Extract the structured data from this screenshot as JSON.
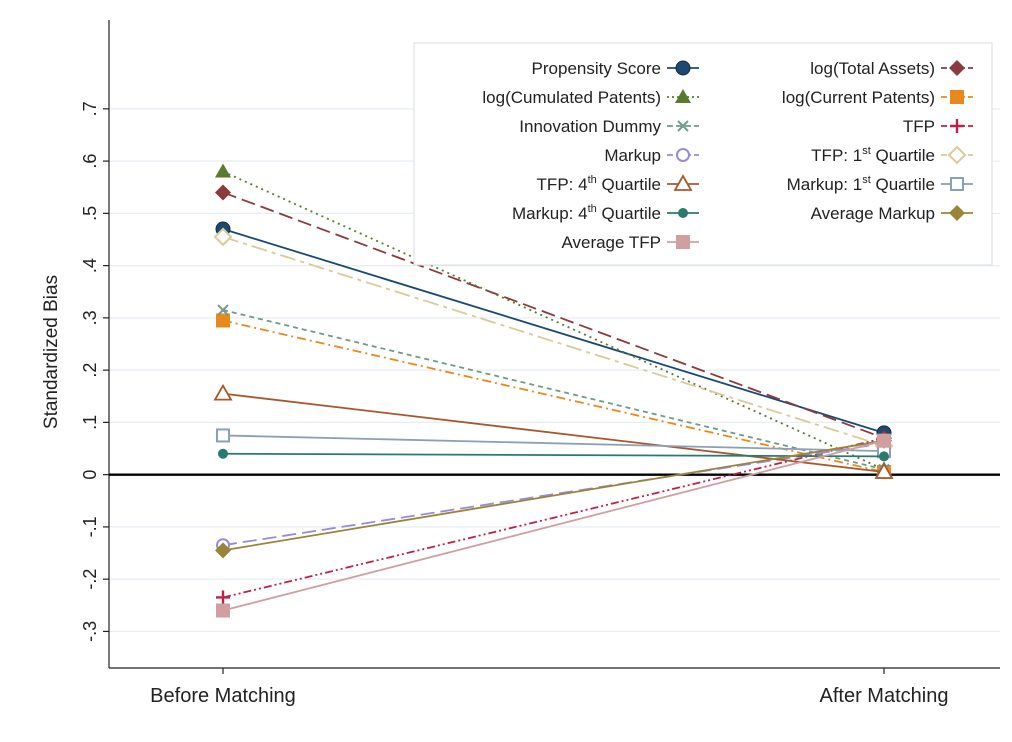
{
  "chart_data": {
    "type": "line",
    "categories": [
      "Before Matching",
      "After Matching"
    ],
    "ylabel": "Standardized Bias",
    "ylim": [
      -0.37,
      0.87
    ],
    "yticks": [
      {
        "value": -0.3,
        "label": "-.3"
      },
      {
        "value": -0.2,
        "label": "-.2"
      },
      {
        "value": -0.1,
        "label": "-.1"
      },
      {
        "value": 0,
        "label": "0"
      },
      {
        "value": 0.1,
        "label": ".1"
      },
      {
        "value": 0.2,
        "label": ".2"
      },
      {
        "value": 0.3,
        "label": ".3"
      },
      {
        "value": 0.4,
        "label": ".4"
      },
      {
        "value": 0.5,
        "label": ".5"
      },
      {
        "value": 0.6,
        "label": ".6"
      },
      {
        "value": 0.7,
        "label": ".7"
      }
    ],
    "grid": true,
    "reference_line": 0,
    "legend_position": "top-right",
    "series": [
      {
        "name": "Propensity Score",
        "values": [
          0.47,
          0.08
        ],
        "color": "#1a4a72",
        "marker": "circle",
        "dash": "solid"
      },
      {
        "name": "log(Total Assets)",
        "values": [
          0.54,
          0.07
        ],
        "color": "#8b3a3e",
        "marker": "diamond",
        "dash": "longdash"
      },
      {
        "name": "log(Cumulated Patents)",
        "values": [
          0.58,
          0.01
        ],
        "color": "#5a7a2e",
        "marker": "triangle",
        "dash": "dot"
      },
      {
        "name": "log(Current Patents)",
        "values": [
          0.295,
          0.005
        ],
        "color": "#e8891e",
        "marker": "square",
        "dash": "dashdot"
      },
      {
        "name": "Innovation Dummy",
        "values": [
          0.315,
          0.01
        ],
        "color": "#6f9a8c",
        "marker": "x",
        "dash": "shortdash"
      },
      {
        "name": "TFP",
        "values": [
          -0.235,
          0.07
        ],
        "color": "#c0204a",
        "marker": "plus",
        "dash": "dashdotdot"
      },
      {
        "name": "Markup",
        "values": [
          -0.135,
          0.06
        ],
        "color": "#9a8ad8",
        "marker": "circle-open",
        "dash": "longdash"
      },
      {
        "name": "TFP: 1st Quartile",
        "values": [
          0.455,
          0.055
        ],
        "color": "#d8cc98",
        "marker": "diamond-open",
        "dash": "dashlong"
      },
      {
        "name": "TFP: 4th Quartile",
        "values": [
          0.155,
          0.005
        ],
        "color": "#a8582e",
        "marker": "triangle-open",
        "dash": "solid"
      },
      {
        "name": "Markup: 1st Quartile",
        "values": [
          0.075,
          0.045
        ],
        "color": "#8aa0b8",
        "marker": "square-open",
        "dash": "solid"
      },
      {
        "name": "Markup: 4th Quartile",
        "values": [
          0.04,
          0.035
        ],
        "color": "#2a7a6e",
        "marker": "circle-small",
        "dash": "solid"
      },
      {
        "name": "Average Markup",
        "values": [
          -0.145,
          0.065
        ],
        "color": "#9a8438",
        "marker": "diamond",
        "dash": "solid"
      },
      {
        "name": "Average TFP",
        "values": [
          -0.26,
          0.065
        ],
        "color": "#d0a0a0",
        "marker": "square",
        "dash": "solid"
      }
    ],
    "legend": {
      "columns": [
        [
          "Propensity Score",
          "log(Cumulated Patents)",
          "Innovation Dummy",
          "Markup",
          "TFP: 4th Quartile",
          "Markup: 4th Quartile",
          "Average TFP"
        ],
        [
          "log(Total Assets)",
          "log(Current Patents)",
          "TFP",
          "TFP: 1st Quartile",
          "Markup: 1st Quartile",
          "Average Markup"
        ]
      ]
    }
  }
}
